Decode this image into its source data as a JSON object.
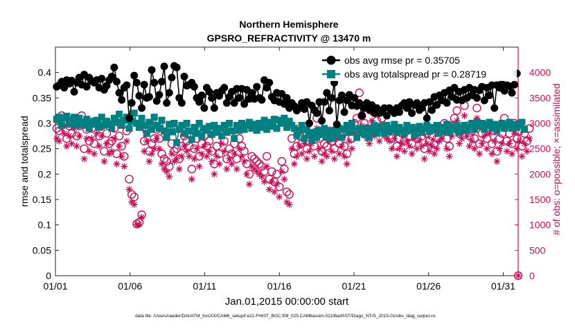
{
  "chart_data": {
    "type": "line",
    "title": "Northern Hemisphere",
    "subtitle": "GPSRO_REFRACTIVITY @ 13470 m",
    "xlabel": "Jan.01,2015 00:00:00 start",
    "ylabel_left": "rmse and totalspread",
    "ylabel_right": "# of obs: o=possible; ×=assimilated",
    "footer": "data file: /Users/raeder/DAI/ATM_forcXX/CAM6_setup/f.e21.FHIST_BGC.f09_025.CAM6assim.011/BadSST/Diags_NTrS_2015-01/obs_diag_output.nc",
    "xlim": [
      1,
      32
    ],
    "ylim_left": [
      0,
      0.45
    ],
    "ylim_right": [
      0,
      4500
    ],
    "x_ticks": [
      1,
      6,
      11,
      16,
      21,
      26,
      31
    ],
    "x_tick_labels": [
      "01/01",
      "01/06",
      "01/11",
      "01/16",
      "01/21",
      "01/26",
      "01/31"
    ],
    "y_left_ticks": [
      0,
      0.05,
      0.1,
      0.15,
      0.2,
      0.25,
      0.3,
      0.35,
      0.4
    ],
    "y_left_tick_labels": [
      "0",
      "0.05",
      "0.1",
      "0.15",
      "0.2",
      "0.25",
      "0.3",
      "0.35",
      "0.4"
    ],
    "y_right_ticks": [
      0,
      500,
      1000,
      1500,
      2000,
      2500,
      3000,
      3500,
      4000
    ],
    "y_right_tick_labels": [
      "0",
      "500",
      "1000",
      "1500",
      "2000",
      "2500",
      "3000",
      "3500",
      "4000"
    ],
    "legend": [
      {
        "label": "obs avg rmse pr = 0.35705",
        "color": "#000000",
        "marker": "circle"
      },
      {
        "label": "obs avg totalspread pr = 0.28719",
        "color": "#008080",
        "marker": "square"
      }
    ],
    "rmse": [
      0.372,
      0.375,
      0.382,
      0.37,
      0.385,
      0.378,
      0.384,
      0.362,
      0.38,
      0.39,
      0.376,
      0.396,
      0.372,
      0.39,
      0.383,
      0.38,
      0.385,
      0.37,
      0.388,
      0.366,
      0.374,
      0.385,
      0.392,
      0.41,
      0.382,
      0.36,
      0.346,
      0.37,
      0.375,
      0.31,
      0.34,
      0.394,
      0.38,
      0.354,
      0.33,
      0.376,
      0.35,
      0.352,
      0.405,
      0.38,
      0.344,
      0.356,
      0.382,
      0.412,
      0.34,
      0.36,
      0.39,
      0.413,
      0.41,
      0.35,
      0.34,
      0.392,
      0.374,
      0.376,
      0.38,
      0.372,
      0.35,
      0.342,
      0.355,
      0.33,
      0.37,
      0.362,
      0.35,
      0.33,
      0.36,
      0.354,
      0.364,
      0.37,
      0.34,
      0.352,
      0.362,
      0.34,
      0.368,
      0.35,
      0.368,
      0.338,
      0.366,
      0.348,
      0.36,
      0.348,
      0.372,
      0.35,
      0.346,
      0.385,
      0.37,
      0.38,
      0.352,
      0.345,
      0.36,
      0.342,
      0.358,
      0.338,
      0.35,
      0.33,
      0.34,
      0.334,
      0.325,
      0.33,
      0.34,
      0.328,
      0.342,
      0.3,
      0.335,
      0.326,
      0.32,
      0.342,
      0.305,
      0.342,
      0.36,
      0.325,
      0.35,
      0.38,
      0.298,
      0.345,
      0.355,
      0.322,
      0.345,
      0.356,
      0.335,
      0.35,
      0.334,
      0.34,
      0.315,
      0.33,
      0.34,
      0.326,
      0.336,
      0.32,
      0.33,
      0.32,
      0.322,
      0.33,
      0.315,
      0.33,
      0.326,
      0.32,
      0.33,
      0.322,
      0.335,
      0.34,
      0.33,
      0.342,
      0.32,
      0.336,
      0.34,
      0.326,
      0.33,
      0.34,
      0.31,
      0.342,
      0.326,
      0.352,
      0.336,
      0.355,
      0.345,
      0.36,
      0.34,
      0.365,
      0.352,
      0.37,
      0.346,
      0.362,
      0.345,
      0.366,
      0.35,
      0.37,
      0.355,
      0.366,
      0.35,
      0.365,
      0.372,
      0.345,
      0.37,
      0.355,
      0.375,
      0.33,
      0.375,
      0.37,
      0.378,
      0.364,
      0.375,
      0.373,
      0.36,
      0.376,
      0.398
    ],
    "totalspread": [
      0.308,
      0.312,
      0.296,
      0.31,
      0.314,
      0.298,
      0.306,
      0.312,
      0.296,
      0.31,
      0.302,
      0.296,
      0.308,
      0.29,
      0.304,
      0.298,
      0.306,
      0.292,
      0.312,
      0.296,
      0.304,
      0.298,
      0.29,
      0.31,
      0.302,
      0.318,
      0.296,
      0.306,
      0.312,
      0.29,
      0.304,
      0.32,
      0.3,
      0.292,
      0.31,
      0.296,
      0.28,
      0.302,
      0.288,
      0.312,
      0.296,
      0.29,
      0.306,
      0.285,
      0.272,
      0.298,
      0.283,
      0.3,
      0.262,
      0.288,
      0.296,
      0.28,
      0.3,
      0.285,
      0.268,
      0.292,
      0.28,
      0.3,
      0.274,
      0.29,
      0.286,
      0.294,
      0.278,
      0.296,
      0.282,
      0.29,
      0.275,
      0.296,
      0.282,
      0.3,
      0.285,
      0.27,
      0.296,
      0.286,
      0.3,
      0.288,
      0.296,
      0.302,
      0.29,
      0.298,
      0.286,
      0.3,
      0.292,
      0.306,
      0.288,
      0.302,
      0.294,
      0.308,
      0.29,
      0.306,
      0.3,
      0.31,
      0.292,
      0.304,
      0.296,
      0.29,
      0.276,
      0.286,
      0.296,
      0.27,
      0.288,
      0.28,
      0.266,
      0.282,
      0.272,
      0.286,
      0.278,
      0.29,
      0.272,
      0.284,
      0.27,
      0.286,
      0.278,
      0.29,
      0.272,
      0.288,
      0.296,
      0.282,
      0.3,
      0.288,
      0.272,
      0.29,
      0.282,
      0.278,
      0.29,
      0.272,
      0.286,
      0.296,
      0.28,
      0.288,
      0.294,
      0.28,
      0.296,
      0.284,
      0.29,
      0.298,
      0.282,
      0.292,
      0.286,
      0.28,
      0.296,
      0.286,
      0.292,
      0.278,
      0.288,
      0.294,
      0.282,
      0.29,
      0.296,
      0.284,
      0.292,
      0.286,
      0.296,
      0.28,
      0.292,
      0.286,
      0.298,
      0.282,
      0.294,
      0.288,
      0.296,
      0.282,
      0.29,
      0.296,
      0.286,
      0.292,
      0.3,
      0.288,
      0.302,
      0.294,
      0.3,
      0.288,
      0.296,
      0.302,
      0.29,
      0.298,
      0.286,
      0.296,
      0.3,
      0.29,
      0.296,
      0.302,
      0.29,
      0.298,
      0.292,
      0.296,
      0.302,
      0.288
    ],
    "obs_possible": [
      2900,
      2850,
      3150,
      3000,
      2700,
      2950,
      2800,
      3100,
      2750,
      2950,
      3150,
      2500,
      2880,
      2650,
      2900,
      2600,
      3000,
      2750,
      2950,
      2450,
      2800,
      2600,
      2650,
      2900,
      2400,
      2750,
      2550,
      2350,
      2850,
      1900,
      1600,
      1550,
      1020,
      1050,
      1200,
      2650,
      2850,
      2450,
      2600,
      2700,
      2880,
      2700,
      2400,
      2300,
      2250,
      2150,
      2600,
      2450,
      2500,
      2300,
      2550,
      2750,
      2650,
      2550,
      2100,
      2500,
      2700,
      2350,
      2600,
      2750,
      2550,
      2650,
      2450,
      2200,
      2550,
      2400,
      2800,
      2650,
      2300,
      2500,
      2400,
      2600,
      2300,
      2700,
      2550,
      2450,
      2200,
      2000,
      2350,
      2300,
      2250,
      2200,
      2150,
      2050,
      2350,
      1900,
      2050,
      1850,
      2000,
      1750,
      2250,
      2100,
      1650,
      1600,
      2700,
      2400,
      2550,
      2750,
      2600,
      2800,
      2500,
      2650,
      2800,
      2550,
      3100,
      2700,
      2450,
      2600,
      2550,
      2850,
      2650,
      2500,
      2900,
      2600,
      2750,
      2550,
      2400,
      2850,
      2700,
      3000,
      3100,
      3600,
      3150,
      3000,
      2900,
      2800,
      3250,
      2950,
      3050,
      2850,
      3100,
      2950,
      2900,
      2850,
      2700,
      2900,
      2550,
      2700,
      2800,
      2650,
      2850,
      2750,
      2600,
      2900,
      2700,
      2850,
      2750,
      2500,
      2800,
      2650,
      2750,
      2600,
      2700,
      2850,
      2900,
      3000,
      2700,
      2550,
      2950,
      3100,
      3250,
      2800,
      2900,
      3350,
      2950,
      2750,
      2850,
      2700,
      3300,
      2600,
      2800,
      2950,
      2700,
      3000,
      2600,
      2850,
      2450,
      2700,
      2800,
      3100,
      2650,
      2800,
      2600,
      3000,
      2700,
      2850,
      2550,
      2800,
      2650,
      2900
    ],
    "obs_assimilated": [
      2700,
      2650,
      2900,
      2800,
      2550,
      2750,
      2600,
      2900,
      2550,
      2750,
      2950,
      2300,
      2700,
      2450,
      2700,
      2400,
      2800,
      2550,
      2750,
      2250,
      2600,
      2400,
      2450,
      2700,
      2200,
      2550,
      2350,
      2150,
      2650,
      1700,
      1450,
      1400,
      1000,
      1000,
      1150,
      2450,
      2650,
      2250,
      2400,
      2500,
      2700,
      2500,
      2200,
      2100,
      2050,
      1950,
      2400,
      2250,
      2300,
      2100,
      2350,
      2550,
      2450,
      2350,
      1900,
      2300,
      2500,
      2150,
      2400,
      2550,
      2350,
      2450,
      2250,
      2000,
      2350,
      2200,
      2600,
      2450,
      2100,
      2300,
      2200,
      2400,
      2100,
      2500,
      2350,
      2250,
      2000,
      1800,
      2150,
      2100,
      2050,
      2000,
      1950,
      1850,
      2150,
      1700,
      1850,
      1650,
      1800,
      1550,
      2050,
      1900,
      1450,
      1400,
      2500,
      2200,
      2350,
      2550,
      2400,
      2600,
      2300,
      2450,
      2600,
      2350,
      2900,
      2500,
      2250,
      2400,
      2350,
      2650,
      2450,
      2300,
      2700,
      2400,
      2550,
      2350,
      2200,
      2650,
      2500,
      2800,
      2900,
      3400,
      2950,
      2800,
      2700,
      2600,
      3050,
      2750,
      2850,
      2650,
      2900,
      2750,
      2700,
      2650,
      2500,
      2700,
      2350,
      2500,
      2600,
      2450,
      2650,
      2550,
      2400,
      2700,
      2500,
      2650,
      2550,
      2300,
      2600,
      2450,
      2550,
      2400,
      2500,
      2650,
      2700,
      2800,
      2500,
      2350,
      2750,
      2900,
      3050,
      2600,
      2700,
      3150,
      2750,
      2550,
      2650,
      2500,
      3100,
      2400,
      2600,
      2750,
      2500,
      2800,
      2400,
      2650,
      2250,
      2500,
      2600,
      2900,
      2450,
      2600,
      2400,
      2800,
      2500,
      2650,
      2350,
      2600,
      2450,
      2700
    ],
    "end_marker": {
      "x": 32,
      "obs": 0
    }
  },
  "colors": {
    "rmse": "#000000",
    "totalspread": "#008080",
    "obs": "#cc0a55"
  }
}
